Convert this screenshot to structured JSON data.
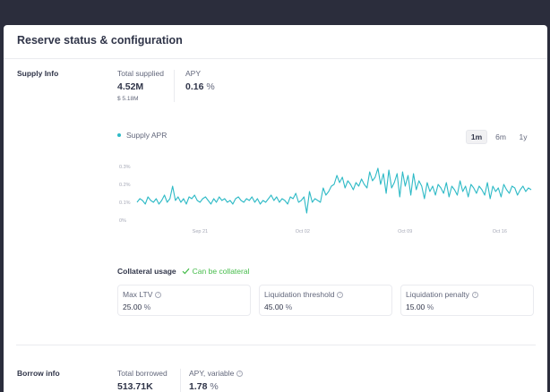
{
  "card": {
    "title": "Reserve status & configuration"
  },
  "supply": {
    "label": "Supply Info",
    "total_supplied_label": "Total supplied",
    "total_supplied_value": "4.52M",
    "total_supplied_usd": "$ 5.18M",
    "apy_label": "APY",
    "apy_value": "0.16",
    "apy_unit": "%"
  },
  "chart_legend": "Supply APR",
  "ranges": {
    "r1m": "1m",
    "r6m": "6m",
    "r1y": "1y",
    "selected": "1m"
  },
  "chart_data": {
    "type": "line",
    "series": [
      {
        "name": "Supply APR",
        "color": "#2ebac6",
        "values": [
          0.1,
          0.12,
          0.11,
          0.09,
          0.13,
          0.11,
          0.1,
          0.12,
          0.09,
          0.11,
          0.14,
          0.1,
          0.12,
          0.19,
          0.11,
          0.13,
          0.1,
          0.12,
          0.09,
          0.13,
          0.12,
          0.14,
          0.11,
          0.1,
          0.12,
          0.13,
          0.11,
          0.09,
          0.12,
          0.1,
          0.13,
          0.11,
          0.12,
          0.1,
          0.11,
          0.09,
          0.12,
          0.13,
          0.11,
          0.1,
          0.12,
          0.11,
          0.13,
          0.1,
          0.12,
          0.09,
          0.11,
          0.1,
          0.12,
          0.14,
          0.11,
          0.13,
          0.1,
          0.12,
          0.11,
          0.09,
          0.13,
          0.12,
          0.15,
          0.1,
          0.11,
          0.13,
          0.04,
          0.16,
          0.1,
          0.12,
          0.11,
          0.1,
          0.18,
          0.14,
          0.16,
          0.19,
          0.2,
          0.25,
          0.21,
          0.24,
          0.18,
          0.22,
          0.2,
          0.17,
          0.21,
          0.19,
          0.23,
          0.2,
          0.18,
          0.27,
          0.22,
          0.24,
          0.29,
          0.2,
          0.26,
          0.15,
          0.28,
          0.18,
          0.21,
          0.26,
          0.13,
          0.27,
          0.19,
          0.25,
          0.14,
          0.26,
          0.17,
          0.22,
          0.19,
          0.12,
          0.21,
          0.16,
          0.19,
          0.14,
          0.2,
          0.18,
          0.15,
          0.21,
          0.13,
          0.19,
          0.17,
          0.14,
          0.22,
          0.16,
          0.19,
          0.13,
          0.2,
          0.18,
          0.15,
          0.19,
          0.17,
          0.14,
          0.21,
          0.12,
          0.19,
          0.16,
          0.18,
          0.13,
          0.2,
          0.17,
          0.15,
          0.19,
          0.18,
          0.14,
          0.17,
          0.19,
          0.16,
          0.18,
          0.17
        ]
      }
    ],
    "yticks": [
      "0.3%",
      "0.2%",
      "0.1%",
      "0%"
    ],
    "xticks": [
      "Sep 21",
      "Oct 02",
      "Oct 09",
      "Oct 16"
    ],
    "ylim": [
      0,
      0.3
    ],
    "grid": false
  },
  "collateral": {
    "title": "Collateral usage",
    "status": "Can be collateral",
    "status_color": "#46bc4b",
    "max_ltv_label": "Max LTV",
    "max_ltv_value": "25.00",
    "liq_threshold_label": "Liquidation threshold",
    "liq_threshold_value": "45.00",
    "liq_penalty_label": "Liquidation penalty",
    "liq_penalty_value": "15.00",
    "unit": "%",
    "info_icon": "i"
  },
  "borrow": {
    "label": "Borrow info",
    "total_borrowed_label": "Total borrowed",
    "total_borrowed_value": "513.71K",
    "apy_label": "APY, variable",
    "apy_value": "1.78",
    "apy_unit": "%"
  }
}
